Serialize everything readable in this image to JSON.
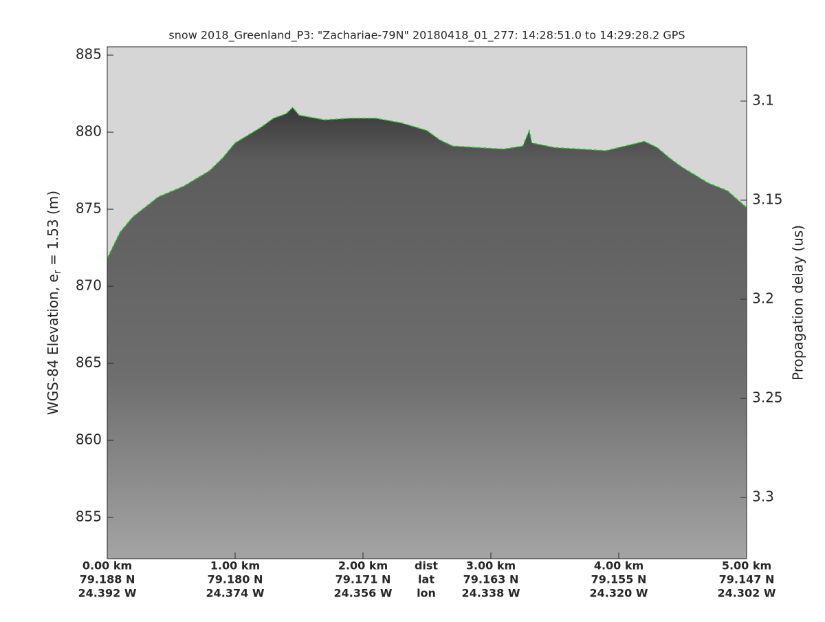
{
  "chart_data": {
    "type": "line",
    "title": "snow 2018_Greenland_P3: \"Zachariae-79N\"  20180418_01_277: 14:28:51.0 to 14:29:28.2 GPS",
    "ylabel": [
      "WGS-84 Elevation, e",
      "r",
      " = 1.53 (m)"
    ],
    "y2label": "Propagation delay (us)",
    "x": [
      0,
      0.1,
      0.2,
      0.4,
      0.6,
      0.8,
      0.9,
      1.0,
      1.1,
      1.2,
      1.3,
      1.4,
      1.45,
      1.5,
      1.7,
      1.9,
      2.1,
      2.3,
      2.5,
      2.6,
      2.7,
      2.9,
      3.1,
      3.25,
      3.3,
      3.32,
      3.5,
      3.7,
      3.9,
      4.1,
      4.2,
      4.3,
      4.4,
      4.5,
      4.7,
      4.85,
      5.0
    ],
    "values": [
      871.8,
      873.5,
      874.5,
      875.8,
      876.5,
      877.5,
      878.3,
      879.3,
      879.8,
      880.3,
      880.9,
      881.2,
      881.6,
      881.1,
      880.8,
      880.9,
      880.9,
      880.6,
      880.1,
      879.5,
      879.1,
      879.0,
      878.9,
      879.1,
      880.1,
      879.3,
      879.0,
      878.9,
      878.8,
      879.2,
      879.4,
      879.0,
      878.3,
      877.7,
      876.7,
      876.2,
      875.1
    ],
    "color": "#22cc22",
    "xlim": [
      0,
      5
    ],
    "xticks": [
      {
        "value": 0,
        "label": "0.00 km"
      },
      {
        "value": 1,
        "label": "1.00 km"
      },
      {
        "value": 2,
        "label": "2.00 km"
      },
      {
        "value": 3,
        "label": "3.00 km"
      },
      {
        "value": 4,
        "label": "4.00 km"
      },
      {
        "value": 5,
        "label": "5.00 km"
      }
    ],
    "lat_labels": [
      "79.188 N",
      "79.180 N",
      "79.171 N",
      "79.163 N",
      "79.155 N",
      "79.147 N"
    ],
    "lon_labels": [
      "24.392 W",
      "24.374 W",
      "24.356 W",
      "24.338 W",
      "24.320 W",
      "24.302 W"
    ],
    "row_names": [
      "dist",
      "lat",
      "lon"
    ],
    "ylim": [
      852.32,
      885.54
    ],
    "yticks": [
      855,
      860,
      865,
      870,
      875,
      880,
      885
    ],
    "y2lim": [
      3.3309,
      3.0726
    ],
    "y2ticks": [
      3.1,
      3.15,
      3.2,
      3.25,
      3.3
    ]
  }
}
